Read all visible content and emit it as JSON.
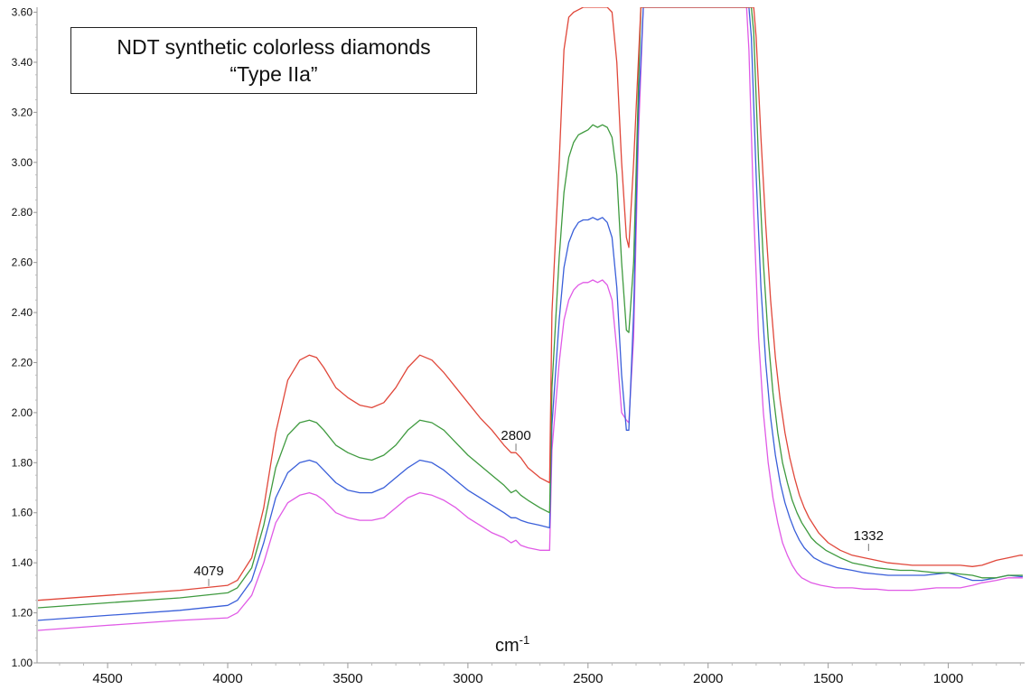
{
  "chart_data": {
    "type": "line",
    "title": "NDT synthetic colorless diamonds",
    "subtitle": "“Type IIa”",
    "xlabel": "cm",
    "xlabel_superscript": "-1",
    "ylabel": "",
    "x_reversed": true,
    "xlim": [
      4790,
      690
    ],
    "ylim": [
      1.0,
      3.62
    ],
    "grid": false,
    "x_ticks": [
      4500,
      4000,
      3500,
      3000,
      2500,
      2000,
      1500,
      1000
    ],
    "y_ticks": [
      "1.00",
      "1.20",
      "1.40",
      "1.60",
      "1.80",
      "2.00",
      "2.20",
      "2.40",
      "2.60",
      "2.80",
      "3.00",
      "3.20",
      "3.40",
      "3.60"
    ],
    "annotations": [
      {
        "text": "4079",
        "x": 4079,
        "y": 1.3
      },
      {
        "text": "2800",
        "x": 2800,
        "y": 1.84
      },
      {
        "text": "1332",
        "x": 1332,
        "y": 1.44
      }
    ],
    "series": [
      {
        "color": "#e0473a",
        "x": [
          4790,
          4500,
          4200,
          4000,
          3960,
          3900,
          3850,
          3800,
          3750,
          3700,
          3660,
          3630,
          3600,
          3550,
          3500,
          3450,
          3400,
          3350,
          3300,
          3250,
          3200,
          3150,
          3100,
          3050,
          3000,
          2950,
          2900,
          2850,
          2820,
          2800,
          2780,
          2750,
          2700,
          2660,
          2650,
          2620,
          2600,
          2580,
          2560,
          2540,
          2520,
          2500,
          2480,
          2460,
          2440,
          2420,
          2400,
          2380,
          2360,
          2340,
          2330,
          2310,
          2280,
          2260,
          1810,
          1800,
          1780,
          1760,
          1740,
          1720,
          1700,
          1680,
          1660,
          1640,
          1620,
          1600,
          1580,
          1560,
          1540,
          1500,
          1450,
          1400,
          1350,
          1300,
          1250,
          1200,
          1150,
          1100,
          1050,
          1000,
          950,
          900,
          860,
          800,
          750,
          700,
          690
        ],
        "y": [
          1.25,
          1.27,
          1.29,
          1.31,
          1.33,
          1.42,
          1.62,
          1.92,
          2.13,
          2.21,
          2.23,
          2.22,
          2.18,
          2.1,
          2.06,
          2.03,
          2.02,
          2.04,
          2.1,
          2.18,
          2.23,
          2.21,
          2.16,
          2.1,
          2.04,
          1.98,
          1.93,
          1.87,
          1.84,
          1.84,
          1.82,
          1.78,
          1.74,
          1.72,
          2.4,
          3.0,
          3.45,
          3.58,
          3.6,
          3.61,
          3.62,
          3.62,
          3.62,
          3.62,
          3.62,
          3.62,
          3.6,
          3.4,
          3.0,
          2.7,
          2.66,
          3.0,
          3.62,
          3.62,
          3.62,
          3.5,
          3.1,
          2.75,
          2.45,
          2.22,
          2.05,
          1.92,
          1.82,
          1.74,
          1.67,
          1.62,
          1.58,
          1.55,
          1.52,
          1.48,
          1.45,
          1.43,
          1.42,
          1.41,
          1.4,
          1.395,
          1.39,
          1.39,
          1.39,
          1.39,
          1.39,
          1.385,
          1.39,
          1.41,
          1.42,
          1.43,
          1.43
        ]
      },
      {
        "color": "#3f9a3f",
        "x": [
          4790,
          4500,
          4200,
          4000,
          3960,
          3900,
          3850,
          3800,
          3750,
          3700,
          3660,
          3630,
          3600,
          3550,
          3500,
          3450,
          3400,
          3350,
          3300,
          3250,
          3200,
          3150,
          3100,
          3050,
          3000,
          2950,
          2900,
          2850,
          2820,
          2800,
          2780,
          2750,
          2700,
          2660,
          2650,
          2620,
          2600,
          2580,
          2560,
          2540,
          2520,
          2500,
          2480,
          2460,
          2440,
          2420,
          2400,
          2380,
          2360,
          2340,
          2330,
          2310,
          2290,
          2280,
          2260,
          1820,
          1810,
          1790,
          1770,
          1750,
          1730,
          1710,
          1690,
          1670,
          1650,
          1630,
          1610,
          1590,
          1570,
          1550,
          1510,
          1450,
          1400,
          1350,
          1300,
          1250,
          1200,
          1150,
          1100,
          1050,
          1000,
          950,
          900,
          860,
          800,
          750,
          700,
          690
        ],
        "y": [
          1.22,
          1.24,
          1.26,
          1.28,
          1.3,
          1.38,
          1.55,
          1.78,
          1.91,
          1.96,
          1.97,
          1.96,
          1.93,
          1.87,
          1.84,
          1.82,
          1.81,
          1.83,
          1.87,
          1.93,
          1.97,
          1.96,
          1.93,
          1.88,
          1.83,
          1.79,
          1.75,
          1.71,
          1.68,
          1.69,
          1.67,
          1.65,
          1.62,
          1.6,
          2.1,
          2.62,
          2.88,
          3.02,
          3.08,
          3.11,
          3.12,
          3.13,
          3.15,
          3.14,
          3.15,
          3.14,
          3.1,
          2.95,
          2.6,
          2.33,
          2.32,
          2.6,
          3.3,
          3.62,
          3.62,
          3.62,
          3.52,
          3.0,
          2.6,
          2.3,
          2.08,
          1.92,
          1.8,
          1.72,
          1.65,
          1.6,
          1.56,
          1.53,
          1.5,
          1.48,
          1.45,
          1.42,
          1.4,
          1.39,
          1.38,
          1.375,
          1.37,
          1.37,
          1.365,
          1.36,
          1.36,
          1.355,
          1.35,
          1.34,
          1.34,
          1.35,
          1.35,
          1.35
        ]
      },
      {
        "color": "#3a5fd9",
        "x": [
          4790,
          4500,
          4200,
          4000,
          3960,
          3900,
          3850,
          3800,
          3750,
          3700,
          3660,
          3630,
          3600,
          3550,
          3500,
          3450,
          3400,
          3350,
          3300,
          3250,
          3200,
          3150,
          3100,
          3050,
          3000,
          2950,
          2900,
          2850,
          2820,
          2800,
          2780,
          2750,
          2700,
          2660,
          2650,
          2620,
          2600,
          2580,
          2560,
          2540,
          2520,
          2500,
          2480,
          2460,
          2440,
          2420,
          2400,
          2380,
          2360,
          2340,
          2330,
          2310,
          2290,
          2270,
          2250,
          1830,
          1820,
          1800,
          1780,
          1760,
          1740,
          1720,
          1700,
          1680,
          1660,
          1640,
          1620,
          1600,
          1580,
          1560,
          1520,
          1460,
          1400,
          1350,
          1300,
          1250,
          1200,
          1150,
          1100,
          1050,
          1000,
          950,
          900,
          860,
          800,
          750,
          700,
          690
        ],
        "y": [
          1.17,
          1.19,
          1.21,
          1.23,
          1.25,
          1.33,
          1.48,
          1.66,
          1.76,
          1.8,
          1.81,
          1.8,
          1.77,
          1.72,
          1.69,
          1.68,
          1.68,
          1.7,
          1.74,
          1.78,
          1.81,
          1.8,
          1.77,
          1.73,
          1.69,
          1.66,
          1.63,
          1.6,
          1.58,
          1.58,
          1.57,
          1.56,
          1.55,
          1.54,
          1.95,
          2.37,
          2.58,
          2.68,
          2.73,
          2.76,
          2.77,
          2.77,
          2.78,
          2.77,
          2.78,
          2.76,
          2.7,
          2.5,
          2.15,
          1.93,
          1.93,
          2.4,
          3.2,
          3.62,
          3.62,
          3.62,
          3.5,
          2.95,
          2.5,
          2.2,
          1.98,
          1.83,
          1.72,
          1.64,
          1.58,
          1.53,
          1.49,
          1.46,
          1.44,
          1.42,
          1.4,
          1.38,
          1.37,
          1.36,
          1.355,
          1.35,
          1.35,
          1.35,
          1.35,
          1.355,
          1.36,
          1.345,
          1.33,
          1.33,
          1.34,
          1.35,
          1.345,
          1.345
        ]
      },
      {
        "color": "#e05ae6",
        "x": [
          4790,
          4500,
          4200,
          4000,
          3960,
          3900,
          3850,
          3800,
          3750,
          3700,
          3660,
          3630,
          3600,
          3550,
          3500,
          3450,
          3400,
          3350,
          3300,
          3250,
          3200,
          3150,
          3100,
          3050,
          3000,
          2950,
          2900,
          2850,
          2820,
          2800,
          2780,
          2750,
          2700,
          2660,
          2650,
          2620,
          2600,
          2580,
          2560,
          2540,
          2520,
          2500,
          2480,
          2460,
          2440,
          2420,
          2400,
          2380,
          2360,
          2340,
          2330,
          2310,
          2290,
          2270,
          2240,
          1840,
          1830,
          1810,
          1790,
          1770,
          1750,
          1730,
          1710,
          1690,
          1670,
          1650,
          1630,
          1610,
          1590,
          1570,
          1530,
          1470,
          1400,
          1350,
          1300,
          1250,
          1200,
          1150,
          1100,
          1050,
          1000,
          950,
          900,
          860,
          800,
          750,
          700,
          690
        ],
        "y": [
          1.13,
          1.15,
          1.17,
          1.18,
          1.2,
          1.27,
          1.4,
          1.56,
          1.64,
          1.67,
          1.68,
          1.67,
          1.65,
          1.6,
          1.58,
          1.57,
          1.57,
          1.58,
          1.62,
          1.66,
          1.68,
          1.67,
          1.65,
          1.62,
          1.58,
          1.55,
          1.52,
          1.5,
          1.48,
          1.49,
          1.47,
          1.46,
          1.45,
          1.45,
          1.85,
          2.2,
          2.37,
          2.45,
          2.49,
          2.51,
          2.52,
          2.52,
          2.53,
          2.52,
          2.53,
          2.51,
          2.45,
          2.25,
          2.0,
          1.97,
          1.96,
          2.3,
          3.1,
          3.62,
          3.62,
          3.62,
          3.45,
          2.8,
          2.3,
          2.0,
          1.8,
          1.66,
          1.56,
          1.48,
          1.43,
          1.39,
          1.36,
          1.34,
          1.33,
          1.32,
          1.31,
          1.3,
          1.3,
          1.295,
          1.295,
          1.29,
          1.29,
          1.29,
          1.295,
          1.3,
          1.3,
          1.3,
          1.31,
          1.32,
          1.33,
          1.34,
          1.34,
          1.34
        ]
      }
    ]
  }
}
